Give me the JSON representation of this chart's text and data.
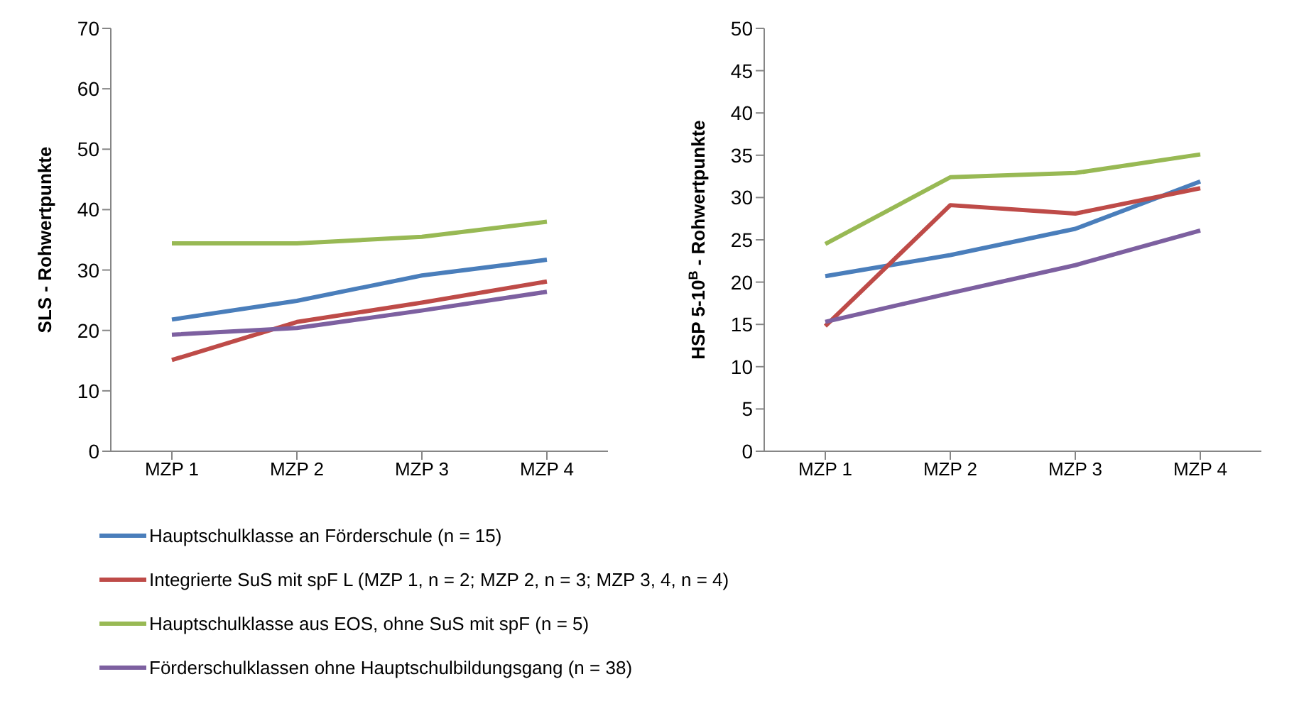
{
  "chart_data": [
    {
      "type": "line",
      "ylabel": "SLS - Rohwertpunkte",
      "categories": [
        "MZP 1",
        "MZP 2",
        "MZP 3",
        "MZP 4"
      ],
      "ylim": [
        0,
        70
      ],
      "yticks": [
        0,
        10,
        20,
        30,
        40,
        50,
        60,
        70
      ],
      "grid": false,
      "legend": "bottom",
      "marker": "none",
      "series": [
        {
          "name": "Hauptschulklasse an Förderschule (n = 15)",
          "color": "#4a7ebb",
          "values": [
            21.8,
            24.9,
            29.1,
            31.7
          ]
        },
        {
          "name": "Integrierte SuS mit spF L (MZP  1, n = 2; MZP 2, n = 3; MZP 3, 4, n = 4)",
          "color": "#be4b48",
          "values": [
            15.1,
            21.4,
            24.6,
            28.1
          ]
        },
        {
          "name": "Hauptschulklasse aus EOS, ohne SuS mit spF (n = 5)",
          "color": "#98b954",
          "values": [
            34.4,
            34.4,
            35.5,
            38.0
          ]
        },
        {
          "name": "Förderschulklassen ohne Hauptschulbildungsgang (n = 38)",
          "color": "#7d60a0",
          "values": [
            19.3,
            20.4,
            23.3,
            26.4
          ]
        }
      ]
    },
    {
      "type": "line",
      "ylabel": "HSP 5-10$^{B}$ - Rohwertpunkte",
      "categories": [
        "MZP 1",
        "MZP 2",
        "MZP 3",
        "MZP 4"
      ],
      "ylim": [
        0,
        50
      ],
      "yticks": [
        0,
        5,
        10,
        15,
        20,
        25,
        30,
        35,
        40,
        45,
        50
      ],
      "grid": false,
      "marker": "none",
      "series": [
        {
          "color": "#4a7ebb",
          "values": [
            20.7,
            23.2,
            26.3,
            31.9
          ]
        },
        {
          "color": "#be4b48",
          "values": [
            14.8,
            29.1,
            28.1,
            31.1
          ]
        },
        {
          "color": "#98b954",
          "values": [
            24.5,
            32.4,
            32.9,
            35.1
          ]
        },
        {
          "color": "#7d60a0",
          "values": [
            15.3,
            18.7,
            22.0,
            26.1
          ]
        }
      ]
    }
  ]
}
